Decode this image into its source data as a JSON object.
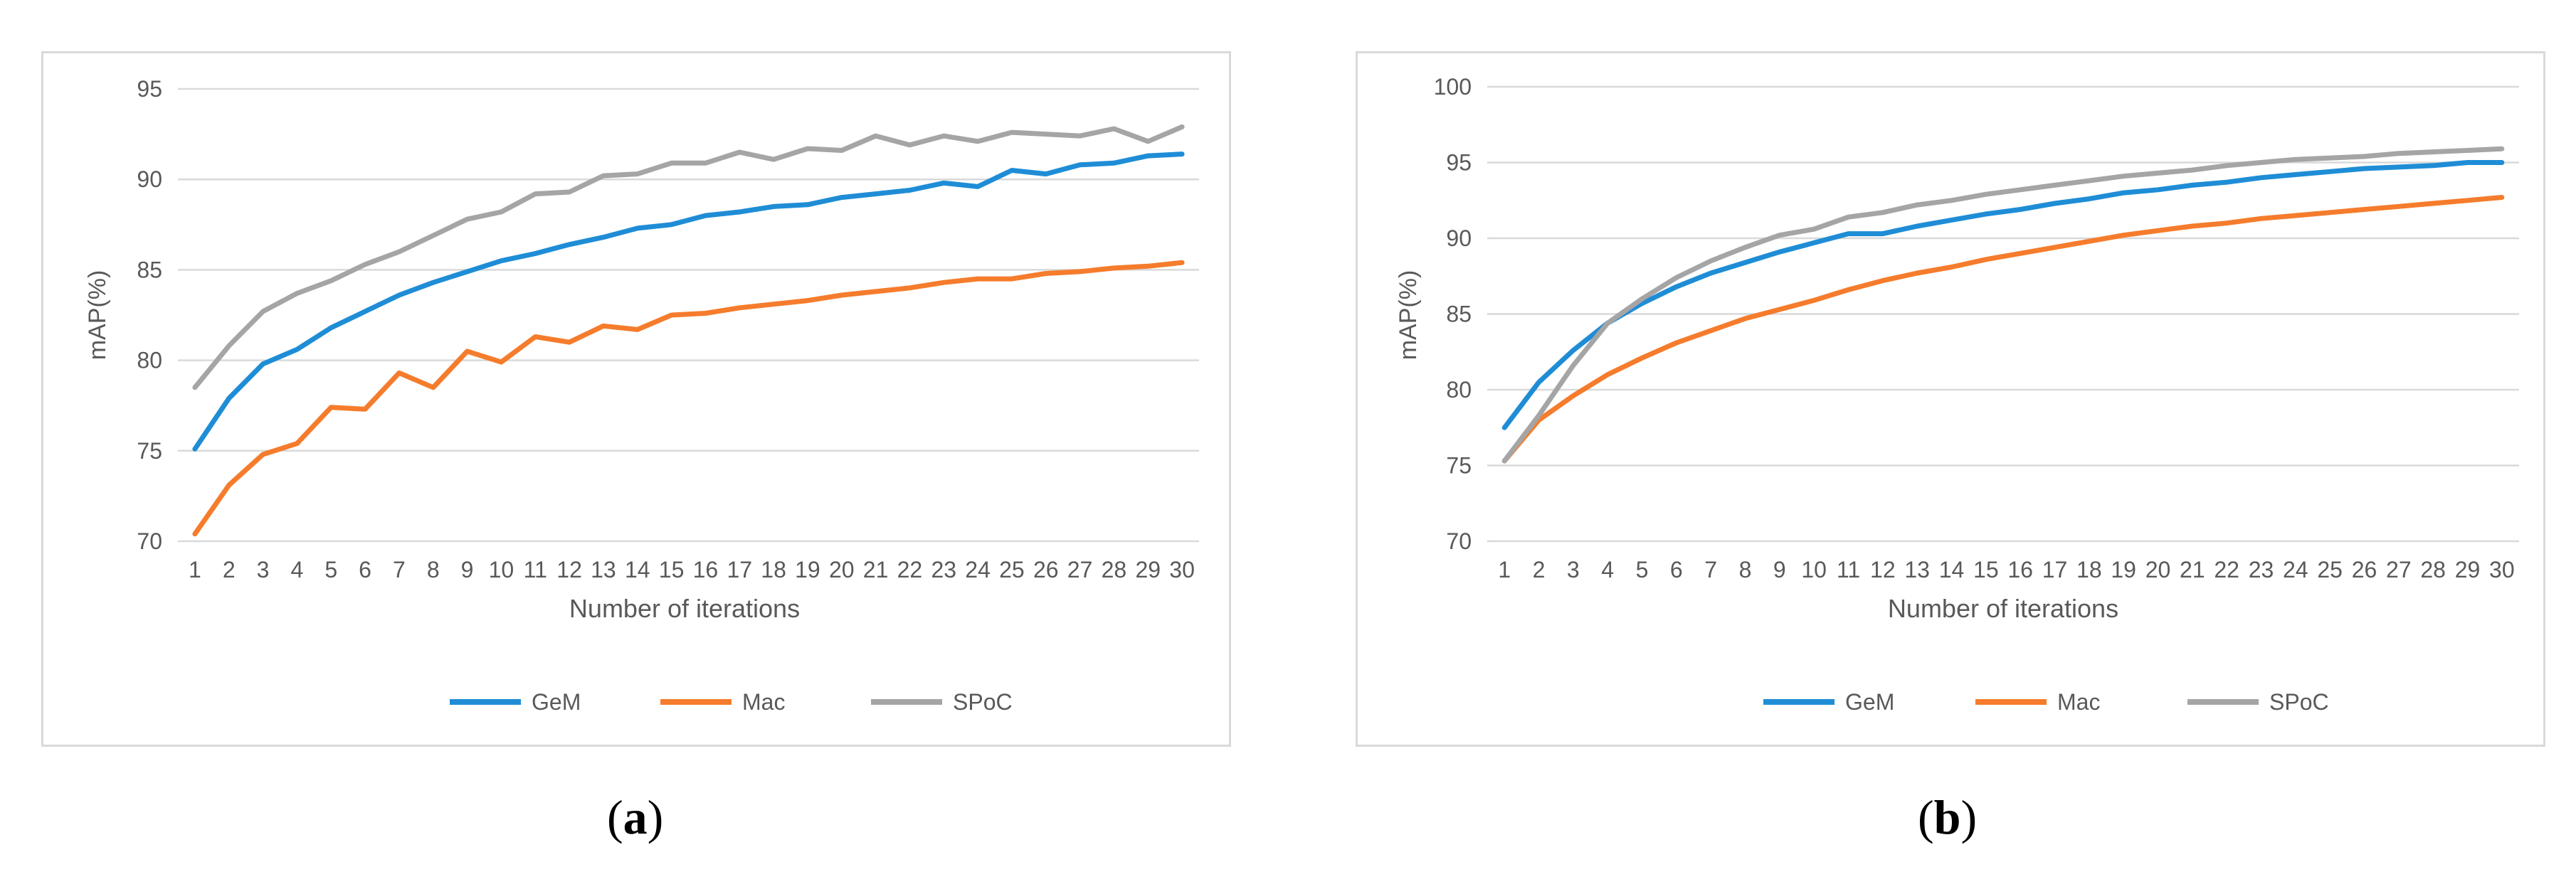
{
  "chart_data": [
    {
      "type": "line",
      "panel": "a",
      "xlabel": "Number of iterations",
      "ylabel": "mAP(%)",
      "ylim": [
        70,
        95
      ],
      "yticks": [
        70,
        75,
        80,
        85,
        90,
        95
      ],
      "grid": true,
      "legend_position": "bottom-center",
      "categories": [
        "1",
        "2",
        "3",
        "4",
        "5",
        "6",
        "7",
        "8",
        "9",
        "10",
        "11",
        "12",
        "13",
        "14",
        "15",
        "16",
        "17",
        "18",
        "19",
        "20",
        "21",
        "22",
        "23",
        "24",
        "25",
        "26",
        "27",
        "28",
        "29",
        "30"
      ],
      "series": [
        {
          "name": "GeM",
          "color": "#1f8dd6",
          "values": [
            75.1,
            77.9,
            79.8,
            80.6,
            81.8,
            82.7,
            83.6,
            84.3,
            84.9,
            85.5,
            85.9,
            86.4,
            86.8,
            87.3,
            87.5,
            88.0,
            88.2,
            88.5,
            88.6,
            89.0,
            89.2,
            89.4,
            89.8,
            89.6,
            90.5,
            90.3,
            90.8,
            90.9,
            91.3,
            91.4
          ]
        },
        {
          "name": "Mac",
          "color": "#f57c2c",
          "values": [
            70.4,
            73.1,
            74.8,
            75.4,
            77.4,
            77.3,
            79.3,
            78.5,
            80.5,
            79.9,
            81.3,
            81.0,
            81.9,
            81.7,
            82.5,
            82.6,
            82.9,
            83.1,
            83.3,
            83.6,
            83.8,
            84.0,
            84.3,
            84.5,
            84.5,
            84.8,
            84.9,
            85.1,
            85.2,
            85.4
          ]
        },
        {
          "name": "SPoC",
          "color": "#a5a5a5",
          "values": [
            78.5,
            80.8,
            82.7,
            83.7,
            84.4,
            85.3,
            86.0,
            86.9,
            87.8,
            88.2,
            89.2,
            89.3,
            90.2,
            90.3,
            90.9,
            90.9,
            91.5,
            91.1,
            91.7,
            91.6,
            92.4,
            91.9,
            92.4,
            92.1,
            92.6,
            92.5,
            92.4,
            92.8,
            92.1,
            92.9
          ]
        }
      ]
    },
    {
      "type": "line",
      "panel": "b",
      "xlabel": "Number of iterations",
      "ylabel": "mAP(%)",
      "ylim": [
        70,
        100
      ],
      "yticks": [
        70,
        75,
        80,
        85,
        90,
        95,
        100
      ],
      "grid": true,
      "legend_position": "bottom-center",
      "categories": [
        "1",
        "2",
        "3",
        "4",
        "5",
        "6",
        "7",
        "8",
        "9",
        "10",
        "11",
        "12",
        "13",
        "14",
        "15",
        "16",
        "17",
        "18",
        "19",
        "20",
        "21",
        "22",
        "23",
        "24",
        "25",
        "26",
        "27",
        "28",
        "29",
        "30"
      ],
      "series": [
        {
          "name": "GeM",
          "color": "#1f8dd6",
          "values": [
            77.5,
            80.5,
            82.6,
            84.4,
            85.7,
            86.8,
            87.7,
            88.4,
            89.1,
            89.7,
            90.3,
            90.3,
            90.8,
            91.2,
            91.6,
            91.9,
            92.3,
            92.6,
            93.0,
            93.2,
            93.5,
            93.7,
            94.0,
            94.2,
            94.4,
            94.6,
            94.7,
            94.8,
            95.0,
            95.0
          ]
        },
        {
          "name": "Mac",
          "color": "#f57c2c",
          "values": [
            75.3,
            78.0,
            79.6,
            81.0,
            82.1,
            83.1,
            83.9,
            84.7,
            85.3,
            85.9,
            86.6,
            87.2,
            87.7,
            88.1,
            88.6,
            89.0,
            89.4,
            89.8,
            90.2,
            90.5,
            90.8,
            91.0,
            91.3,
            91.5,
            91.7,
            91.9,
            92.1,
            92.3,
            92.5,
            92.7
          ]
        },
        {
          "name": "SPoC",
          "color": "#a5a5a5",
          "values": [
            75.3,
            78.3,
            81.6,
            84.4,
            86.0,
            87.4,
            88.5,
            89.4,
            90.2,
            90.6,
            91.4,
            91.7,
            92.2,
            92.5,
            92.9,
            93.2,
            93.5,
            93.8,
            94.1,
            94.3,
            94.5,
            94.8,
            95.0,
            95.2,
            95.3,
            95.4,
            95.6,
            95.7,
            95.8,
            95.9
          ]
        }
      ]
    }
  ],
  "labels": {
    "a": "a",
    "b": "b"
  }
}
